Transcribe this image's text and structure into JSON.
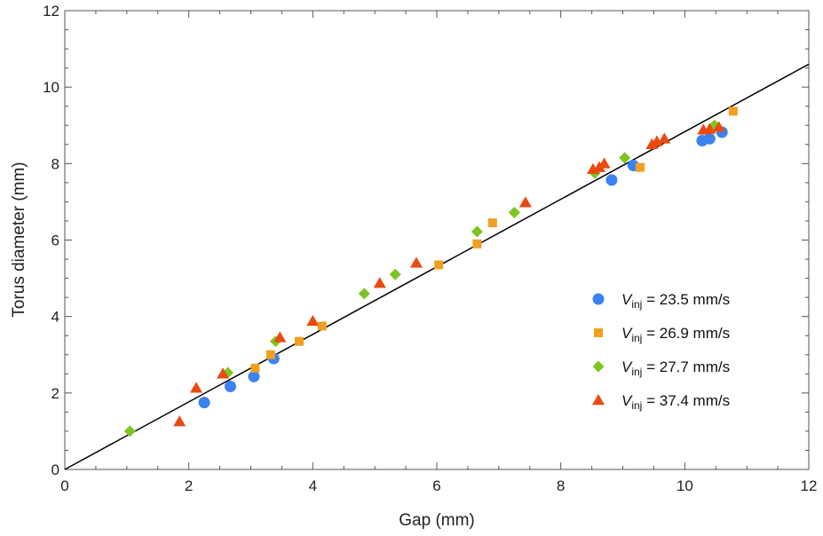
{
  "chart_data": {
    "type": "scatter",
    "xlabel": "Gap (mm)",
    "ylabel": "Torus diameter (mm)",
    "xlim": [
      0,
      12
    ],
    "ylim": [
      0,
      12
    ],
    "xticks": [
      "0",
      "2",
      "4",
      "6",
      "8",
      "10",
      "12"
    ],
    "yticks": [
      "0",
      "2",
      "4",
      "6",
      "8",
      "10",
      "12"
    ],
    "grid": false,
    "legend_position": "bottom-right",
    "fit_line": {
      "x": [
        0,
        12
      ],
      "y": [
        0,
        10.6
      ],
      "color": "#000000"
    },
    "series": [
      {
        "legend": {
          "var": "V",
          "sub": "inj",
          "rest": " = 23.5 mm/s"
        },
        "marker": "circle",
        "color": "#3b82f0",
        "x": [
          2.25,
          2.67,
          3.05,
          3.37,
          8.82,
          9.17,
          10.28,
          10.4,
          10.6
        ],
        "y": [
          1.75,
          2.17,
          2.43,
          2.9,
          7.57,
          7.95,
          8.6,
          8.65,
          8.82
        ]
      },
      {
        "legend": {
          "var": "V",
          "sub": "inj",
          "rest": " = 26.9 mm/s"
        },
        "marker": "square",
        "color": "#f0a020",
        "x": [
          3.07,
          3.32,
          3.78,
          4.15,
          6.03,
          6.65,
          6.9,
          9.28,
          10.78
        ],
        "y": [
          2.65,
          3.0,
          3.35,
          3.75,
          5.35,
          5.9,
          6.45,
          7.9,
          9.37
        ]
      },
      {
        "legend": {
          "var": "V",
          "sub": "inj",
          "rest": " = 27.7 mm/s"
        },
        "marker": "diamond",
        "color": "#7cc520",
        "x": [
          1.05,
          2.63,
          3.4,
          4.83,
          5.33,
          6.65,
          7.25,
          8.55,
          9.03,
          10.48
        ],
        "y": [
          1.0,
          2.53,
          3.35,
          4.6,
          5.1,
          6.22,
          6.72,
          7.75,
          8.15,
          9.0
        ]
      },
      {
        "legend": {
          "var": "V",
          "sub": "inj",
          "rest": " = 37.4 mm/s"
        },
        "marker": "triangle",
        "color": "#ea4a10",
        "x": [
          1.85,
          2.12,
          2.55,
          3.47,
          4.0,
          5.08,
          5.67,
          7.43,
          8.52,
          8.62,
          8.7,
          9.47,
          9.55,
          9.67,
          10.3,
          10.4,
          10.55
        ],
        "y": [
          1.25,
          2.13,
          2.5,
          3.45,
          3.88,
          4.87,
          5.4,
          6.98,
          7.85,
          7.9,
          8.0,
          8.5,
          8.58,
          8.65,
          8.88,
          8.9,
          8.95
        ]
      }
    ]
  }
}
